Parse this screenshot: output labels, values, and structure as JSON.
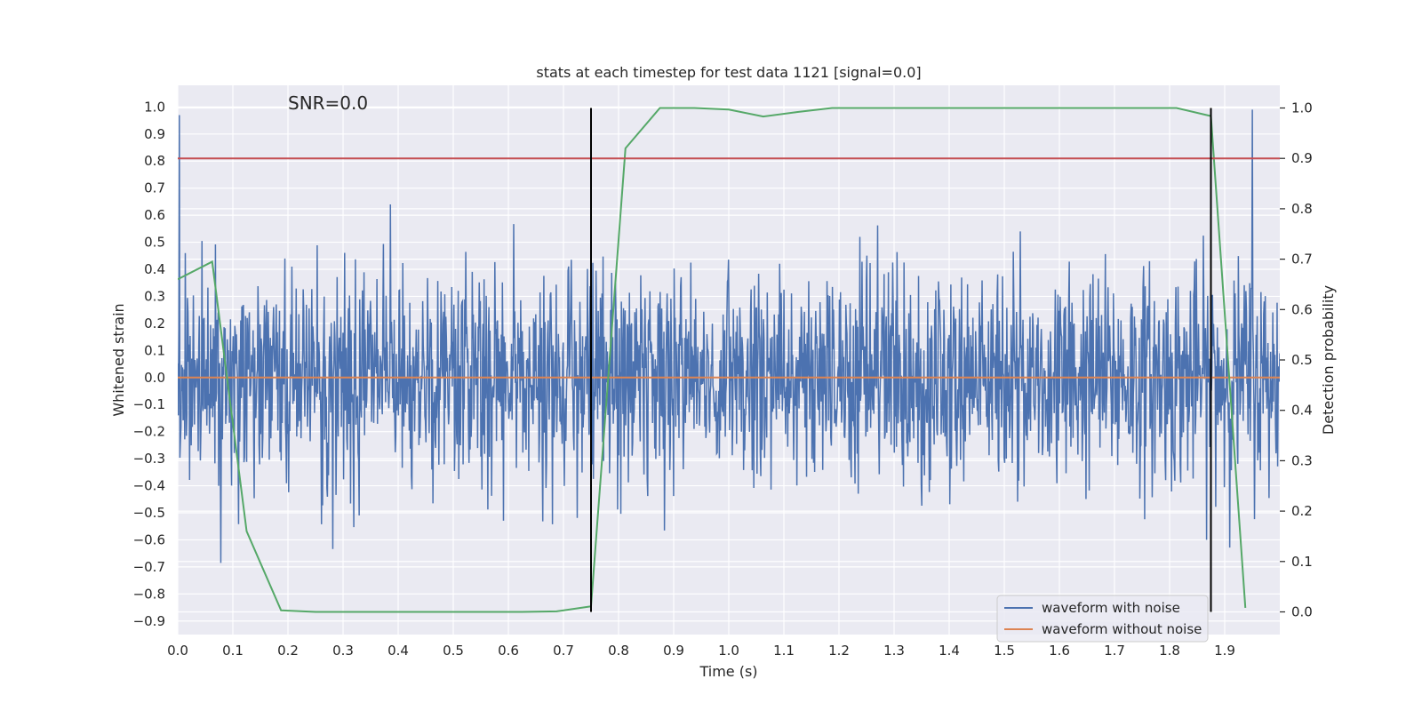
{
  "chart_data": {
    "type": "line",
    "title": "stats at each timestep for test data 1121 [signal=0.0]",
    "xlabel": "Time (s)",
    "ylabel": "Whitened strain",
    "y2label": "Detection probability",
    "annotation": "SNR=0.0",
    "xlim": [
      0.0,
      2.0
    ],
    "ylim": [
      -0.95,
      1.08
    ],
    "y2lim": [
      -0.045,
      1.045
    ],
    "xticks": [
      "0.0",
      "0.1",
      "0.2",
      "0.3",
      "0.4",
      "0.5",
      "0.6",
      "0.7",
      "0.8",
      "0.9",
      "1.0",
      "1.1",
      "1.2",
      "1.3",
      "1.4",
      "1.5",
      "1.6",
      "1.7",
      "1.8",
      "1.9"
    ],
    "yticks": [
      "−0.9",
      "−0.8",
      "−0.7",
      "−0.6",
      "−0.5",
      "−0.4",
      "−0.3",
      "−0.2",
      "−0.1",
      "0.0",
      "0.1",
      "0.2",
      "0.3",
      "0.4",
      "0.5",
      "0.6",
      "0.7",
      "0.8",
      "0.9",
      "1.0"
    ],
    "y2ticks": [
      "0.0",
      "0.1",
      "0.2",
      "0.3",
      "0.4",
      "0.5",
      "0.6",
      "0.7",
      "0.8",
      "0.9",
      "1.0"
    ],
    "grid": true,
    "legend": {
      "placement": "lower-right",
      "entries": [
        {
          "label": "waveform with noise",
          "color": "#4c72b0"
        },
        {
          "label": "waveform without noise",
          "color": "#dd8452"
        }
      ]
    },
    "series": [
      {
        "name": "waveform with noise",
        "color": "#4c72b0",
        "kind": "noise",
        "axis": "left",
        "std": 0.2,
        "samples": 2048
      },
      {
        "name": "waveform without noise",
        "color": "#dd8452",
        "axis": "left",
        "x": [
          0.0,
          2.0
        ],
        "values": [
          0.0,
          0.0
        ]
      },
      {
        "color": "#55a868",
        "axis": "right",
        "x": [
          0.0,
          0.0625,
          0.125,
          0.1875,
          0.25,
          0.3125,
          0.375,
          0.4375,
          0.5,
          0.5625,
          0.625,
          0.6875,
          0.75,
          0.8125,
          0.875,
          0.9375,
          1.0,
          1.0625,
          1.125,
          1.1875,
          1.25,
          1.3125,
          1.375,
          1.4375,
          1.5,
          1.5625,
          1.625,
          1.6875,
          1.75,
          1.8125,
          1.875,
          1.9375
        ],
        "values": [
          0.66,
          0.695,
          0.16,
          0.003,
          0.0,
          0.0,
          0.0,
          0.0,
          0.0,
          0.0,
          0.0,
          0.001,
          0.011,
          0.92,
          1.0,
          1.0,
          0.997,
          0.983,
          0.992,
          1.0,
          1.0,
          1.0,
          1.0,
          1.0,
          1.0,
          1.0,
          1.0,
          1.0,
          1.0,
          1.0,
          0.984,
          0.008
        ]
      },
      {
        "color": "#c44e52",
        "axis": "right",
        "x": [
          0.0,
          2.0
        ],
        "values": [
          0.9,
          0.9
        ]
      }
    ],
    "vlines": [
      {
        "x": 0.75,
        "color": "#000000"
      },
      {
        "x": 1.875,
        "color": "#000000"
      }
    ]
  }
}
